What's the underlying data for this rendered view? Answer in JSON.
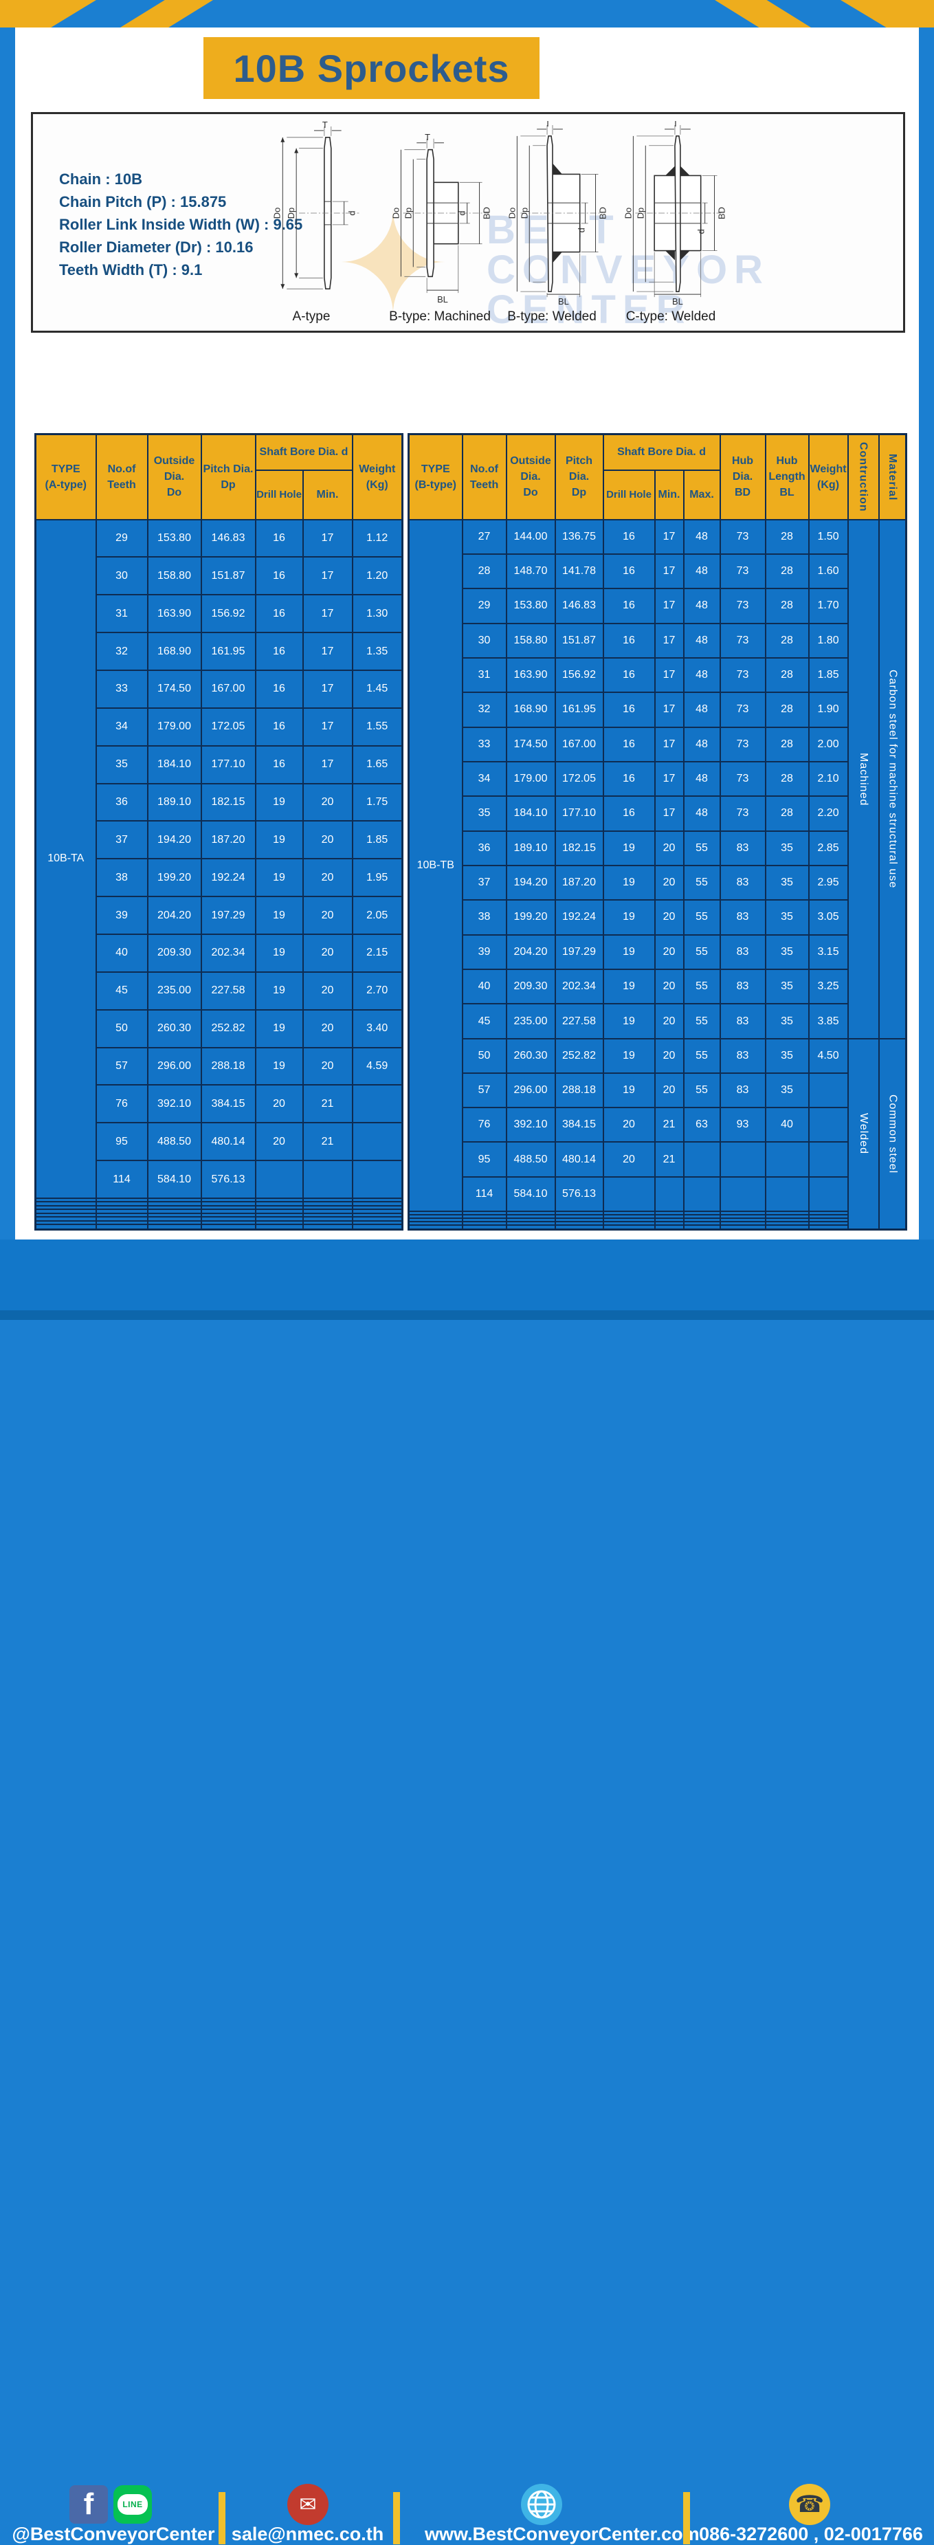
{
  "page": {
    "title": "10B Sprockets"
  },
  "colors": {
    "frame_blue": "#1b7fd1",
    "cell_blue": "#1273c6",
    "footer_blue": "#1277c9",
    "accent_yellow": "#eead1d",
    "border_navy": "#0e2c52",
    "header_text_navy": "#1e5585",
    "title_navy": "#2d5c8d",
    "line_green": "#06c152",
    "facebook_blue": "#4a69a8",
    "mail_red": "#c23b2e",
    "globe_blue": "#3fb4e6",
    "phone_yellow": "#f2c12e"
  },
  "specs": {
    "lines": [
      "Chain  :  10B",
      "Chain Pitch (P)  :  15.875",
      "Roller Link Inside Width (W) : 9.65",
      "Roller Diameter (Dr)  : 10.16",
      "Teeth Width (T)  :  9.1"
    ]
  },
  "diagrams": {
    "watermark": {
      "line1": "BEST",
      "line2": "CONVEYOR",
      "line3": "CENTER",
      "star": "✦"
    },
    "dims": {
      "T": "T",
      "Do": "Do",
      "Dp": "Dp",
      "d": "d",
      "BD": "BD",
      "BL": "BL"
    },
    "captions": [
      "A-type",
      "B-type: Machined",
      "B-type: Welded",
      "C-type: Welded"
    ]
  },
  "left_table": {
    "type_label": "10B-TA",
    "headers": [
      "TYPE\n(A-type)",
      "No.of\nTeeth",
      "Outside\nDia.\nDo",
      "Pitch Dia.\nDp",
      "Shaft Bore Dia. d",
      "Drill Hole",
      "Min.",
      "Weight\n(Kg)"
    ],
    "rows": [
      [
        "29",
        "153.80",
        "146.83",
        "16",
        "17",
        "1.12"
      ],
      [
        "30",
        "158.80",
        "151.87",
        "16",
        "17",
        "1.20"
      ],
      [
        "31",
        "163.90",
        "156.92",
        "16",
        "17",
        "1.30"
      ],
      [
        "32",
        "168.90",
        "161.95",
        "16",
        "17",
        "1.35"
      ],
      [
        "33",
        "174.50",
        "167.00",
        "16",
        "17",
        "1.45"
      ],
      [
        "34",
        "179.00",
        "172.05",
        "16",
        "17",
        "1.55"
      ],
      [
        "35",
        "184.10",
        "177.10",
        "16",
        "17",
        "1.65"
      ],
      [
        "36",
        "189.10",
        "182.15",
        "19",
        "20",
        "1.75"
      ],
      [
        "37",
        "194.20",
        "187.20",
        "19",
        "20",
        "1.85"
      ],
      [
        "38",
        "199.20",
        "192.24",
        "19",
        "20",
        "1.95"
      ],
      [
        "39",
        "204.20",
        "197.29",
        "19",
        "20",
        "2.05"
      ],
      [
        "40",
        "209.30",
        "202.34",
        "19",
        "20",
        "2.15"
      ],
      [
        "45",
        "235.00",
        "227.58",
        "19",
        "20",
        "2.70"
      ],
      [
        "50",
        "260.30",
        "252.82",
        "19",
        "20",
        "3.40"
      ],
      [
        "57",
        "296.00",
        "288.18",
        "19",
        "20",
        "4.59"
      ],
      [
        "76",
        "392.10",
        "384.15",
        "20",
        "21",
        ""
      ],
      [
        "95",
        "488.50",
        "480.14",
        "20",
        "21",
        ""
      ],
      [
        "114",
        "584.10",
        "576.13",
        "",
        "",
        ""
      ]
    ],
    "empty_rows": 8
  },
  "right_table": {
    "type_label": "10B-TB",
    "headers": [
      "TYPE\n(B-type)",
      "No.of\nTeeth",
      "Outside\nDia.\nDo",
      "Pitch Dia.\nDp",
      "Shaft Bore Dia. d",
      "Drill Hole",
      "Min.",
      "Max.",
      "Hub Dia.\nBD",
      "Hub\nLength\nBL",
      "Weight\n(Kg)",
      "Contruction",
      "Material"
    ],
    "rows": [
      [
        "27",
        "144.00",
        "136.75",
        "16",
        "17",
        "48",
        "73",
        "28",
        "1.50"
      ],
      [
        "28",
        "148.70",
        "141.78",
        "16",
        "17",
        "48",
        "73",
        "28",
        "1.60"
      ],
      [
        "29",
        "153.80",
        "146.83",
        "16",
        "17",
        "48",
        "73",
        "28",
        "1.70"
      ],
      [
        "30",
        "158.80",
        "151.87",
        "16",
        "17",
        "48",
        "73",
        "28",
        "1.80"
      ],
      [
        "31",
        "163.90",
        "156.92",
        "16",
        "17",
        "48",
        "73",
        "28",
        "1.85"
      ],
      [
        "32",
        "168.90",
        "161.95",
        "16",
        "17",
        "48",
        "73",
        "28",
        "1.90"
      ],
      [
        "33",
        "174.50",
        "167.00",
        "16",
        "17",
        "48",
        "73",
        "28",
        "2.00"
      ],
      [
        "34",
        "179.00",
        "172.05",
        "16",
        "17",
        "48",
        "73",
        "28",
        "2.10"
      ],
      [
        "35",
        "184.10",
        "177.10",
        "16",
        "17",
        "48",
        "73",
        "28",
        "2.20"
      ],
      [
        "36",
        "189.10",
        "182.15",
        "19",
        "20",
        "55",
        "83",
        "35",
        "2.85"
      ],
      [
        "37",
        "194.20",
        "187.20",
        "19",
        "20",
        "55",
        "83",
        "35",
        "2.95"
      ],
      [
        "38",
        "199.20",
        "192.24",
        "19",
        "20",
        "55",
        "83",
        "35",
        "3.05"
      ],
      [
        "39",
        "204.20",
        "197.29",
        "19",
        "20",
        "55",
        "83",
        "35",
        "3.15"
      ],
      [
        "40",
        "209.30",
        "202.34",
        "19",
        "20",
        "55",
        "83",
        "35",
        "3.25"
      ],
      [
        "45",
        "235.00",
        "227.58",
        "19",
        "20",
        "55",
        "83",
        "35",
        "3.85"
      ],
      [
        "50",
        "260.30",
        "252.82",
        "19",
        "20",
        "55",
        "83",
        "35",
        "4.50"
      ],
      [
        "57",
        "296.00",
        "288.18",
        "19",
        "20",
        "55",
        "83",
        "35",
        ""
      ],
      [
        "76",
        "392.10",
        "384.15",
        "20",
        "21",
        "63",
        "93",
        "40",
        ""
      ],
      [
        "95",
        "488.50",
        "480.14",
        "20",
        "21",
        "",
        "",
        "",
        ""
      ],
      [
        "114",
        "584.10",
        "576.13",
        "",
        "",
        "",
        "",
        "",
        ""
      ]
    ],
    "empty_rows": 5,
    "construction": [
      {
        "label": "Machined",
        "span": 15
      },
      {
        "label": "Welded",
        "span": 10
      }
    ],
    "material": [
      {
        "label": "Carbon steel for machine structural use",
        "span": 15
      },
      {
        "label": "Common steel",
        "span": 10
      }
    ]
  },
  "footer": {
    "facebook_label": "f",
    "line_label": "LINE",
    "social": "@BestConveyorCenter",
    "email": "sale@nmec.co.th",
    "website": "www.BestConveyorCenter.com",
    "phones": "086-3272600 , 02-0017766",
    "mail_glyph": "✉",
    "phone_glyph": "☎"
  }
}
